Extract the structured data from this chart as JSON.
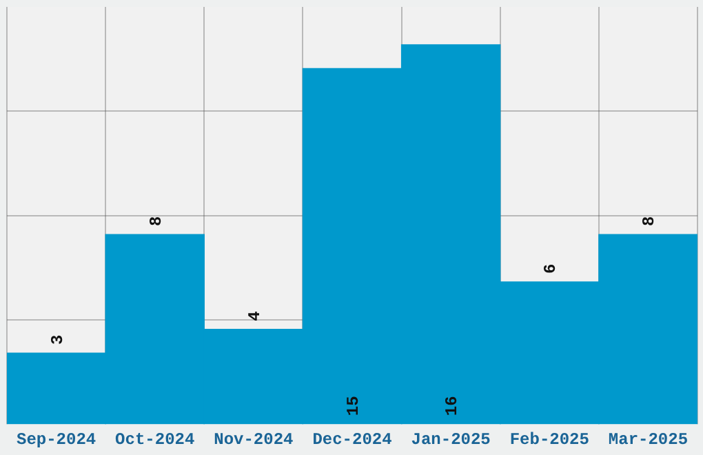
{
  "chart_data": {
    "type": "bar",
    "categories": [
      "Sep-2024",
      "Oct-2024",
      "Nov-2024",
      "Dec-2024",
      "Jan-2025",
      "Feb-2025",
      "Mar-2025"
    ],
    "values": [
      3,
      8,
      4,
      15,
      16,
      6,
      8
    ],
    "color": "#0099cc",
    "data_labels": true,
    "ylim": [
      0,
      17.6
    ],
    "yticks": [
      {
        "value": 4.4,
        "label": null
      },
      {
        "value": 8.8,
        "label": null
      },
      {
        "value": 13.2,
        "label": null
      }
    ],
    "tick_labels": "x",
    "grid": true
  }
}
